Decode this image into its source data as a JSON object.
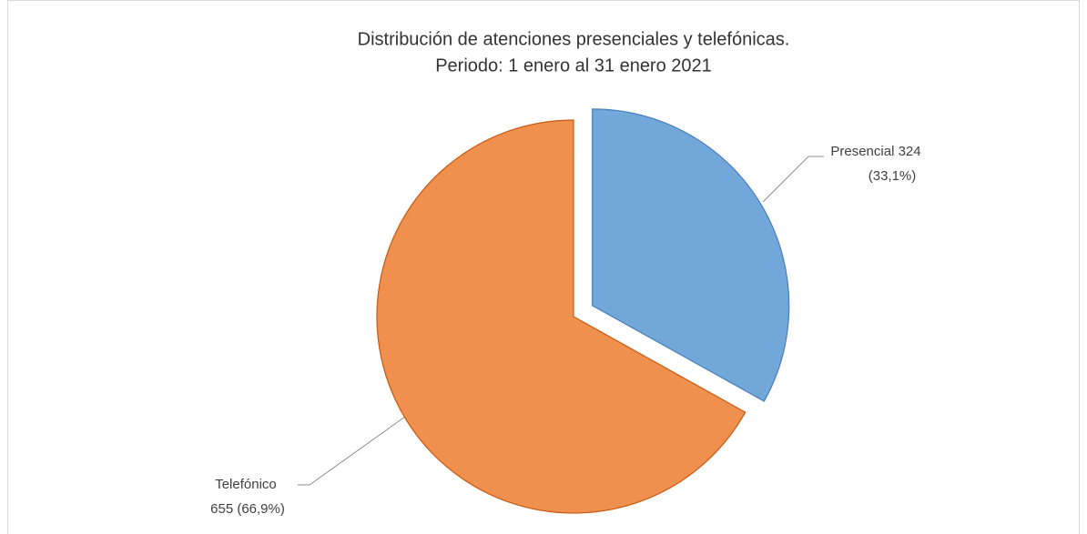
{
  "chart_data": {
    "type": "pie",
    "title": [
      "Distribución de atenciones presenciales y telefónicas.",
      "Periodo: 1 enero al 31 enero 2021"
    ],
    "categories": [
      "Presencial",
      "Telefónico"
    ],
    "values": [
      324,
      655
    ],
    "value_labels": [
      [
        "Presencial  324",
        "(33,1%)"
      ],
      [
        "Telefónico",
        "655  (66,9%)"
      ]
    ],
    "colors": [
      "#72a7da",
      "#f0904f"
    ],
    "exploded": [
      true,
      false
    ]
  }
}
